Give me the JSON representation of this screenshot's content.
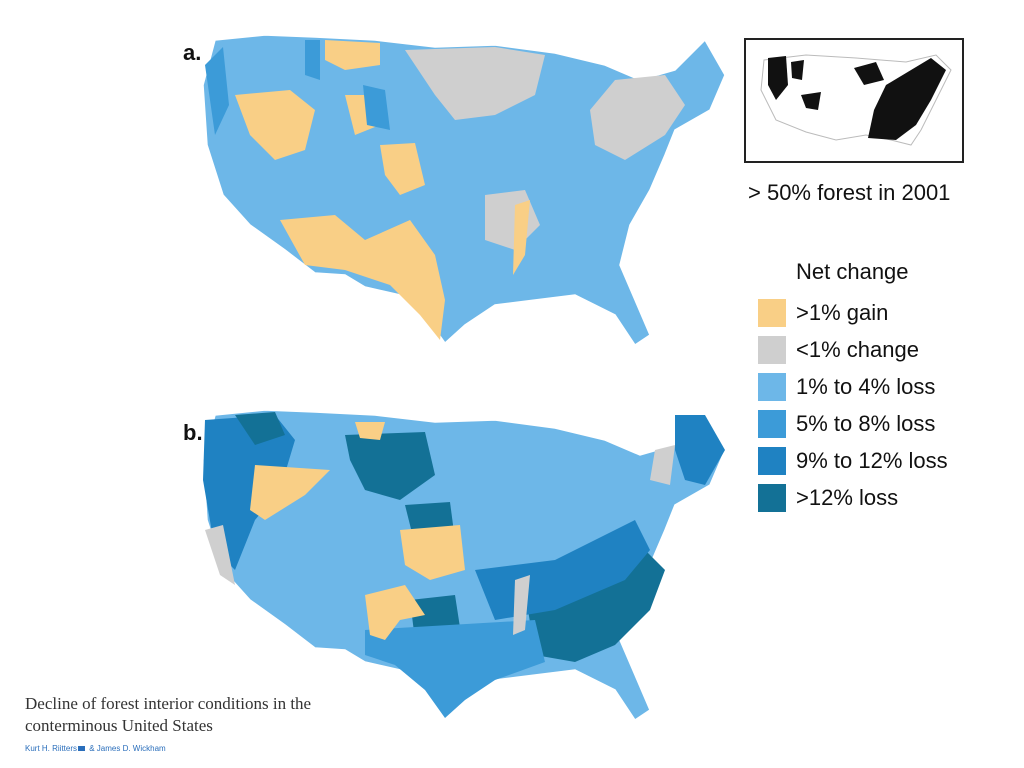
{
  "figure": {
    "panel_a_label": "a.",
    "panel_b_label": "b.",
    "inset_caption": "> 50% forest in 2001"
  },
  "legend": {
    "title": "Net change",
    "items": [
      {
        "label": ">1% gain",
        "color": "#f9cf86"
      },
      {
        "label": "<1% change",
        "color": "#cfcfcf"
      },
      {
        "label": "1% to 4% loss",
        "color": "#6db7e8"
      },
      {
        "label": "5% to 8% loss",
        "color": "#3c9bd8"
      },
      {
        "label": "9% to 12% loss",
        "color": "#1f82c2"
      },
      {
        "label": ">12% loss",
        "color": "#137196"
      }
    ]
  },
  "caption": {
    "title": "Decline of forest interior conditions in the conterminous United States",
    "author_1": "Kurt H. Riitters",
    "author_separator": " & ",
    "author_2": "James D. Wickham"
  }
}
